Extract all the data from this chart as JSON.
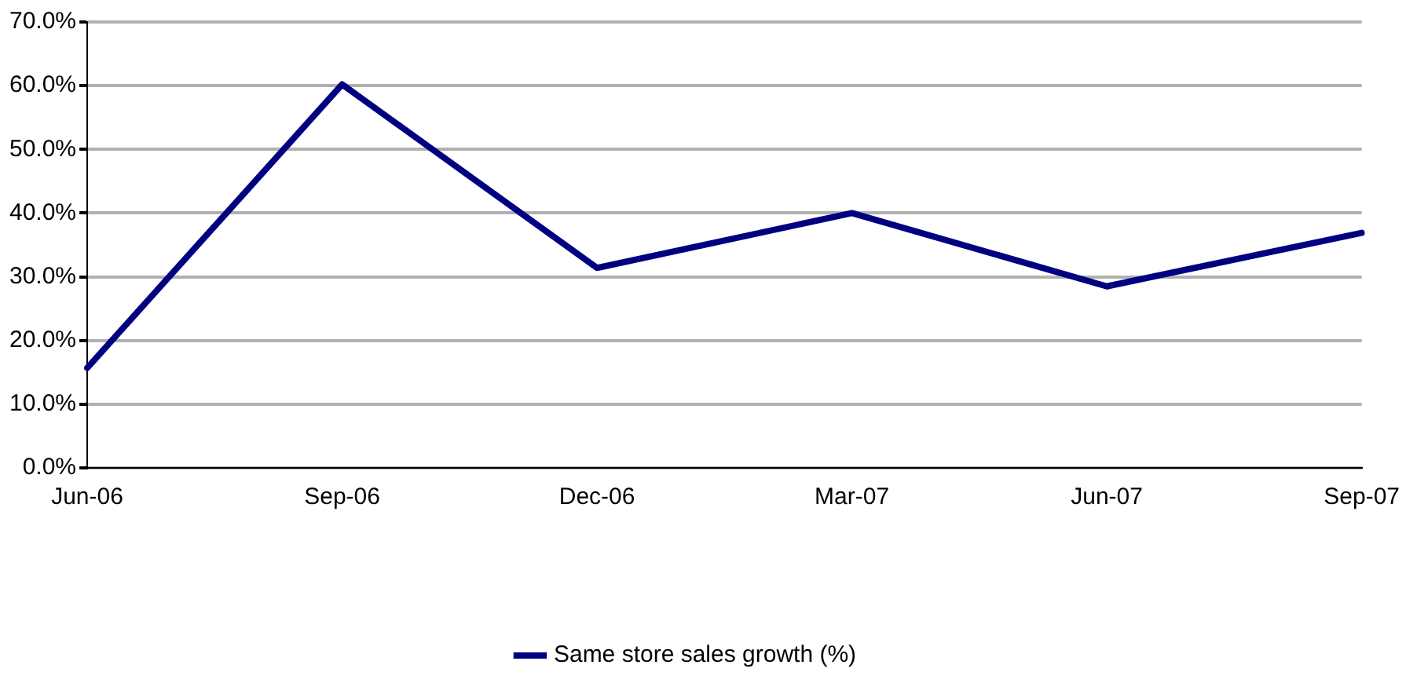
{
  "chart_data": {
    "type": "line",
    "categories": [
      "Jun-06",
      "Sep-06",
      "Dec-06",
      "Mar-07",
      "Jun-07",
      "Sep-07"
    ],
    "series": [
      {
        "name": "Same store sales growth (%)",
        "color": "#000080",
        "values": [
          15.7,
          60.2,
          31.4,
          40.0,
          28.5,
          36.9
        ]
      }
    ],
    "ylim": [
      0,
      70
    ],
    "yticks": [
      {
        "value": 0,
        "label": "0.0%"
      },
      {
        "value": 10,
        "label": "10.0%"
      },
      {
        "value": 20,
        "label": "20.0%"
      },
      {
        "value": 30,
        "label": "30.0%"
      },
      {
        "value": 40,
        "label": "40.0%"
      },
      {
        "value": 50,
        "label": "50.0%"
      },
      {
        "value": 60,
        "label": "60.0%"
      },
      {
        "value": 70,
        "label": "70.0%"
      }
    ],
    "grid": "y",
    "legend": "bottom",
    "marker": "none",
    "line_style": "solid"
  }
}
